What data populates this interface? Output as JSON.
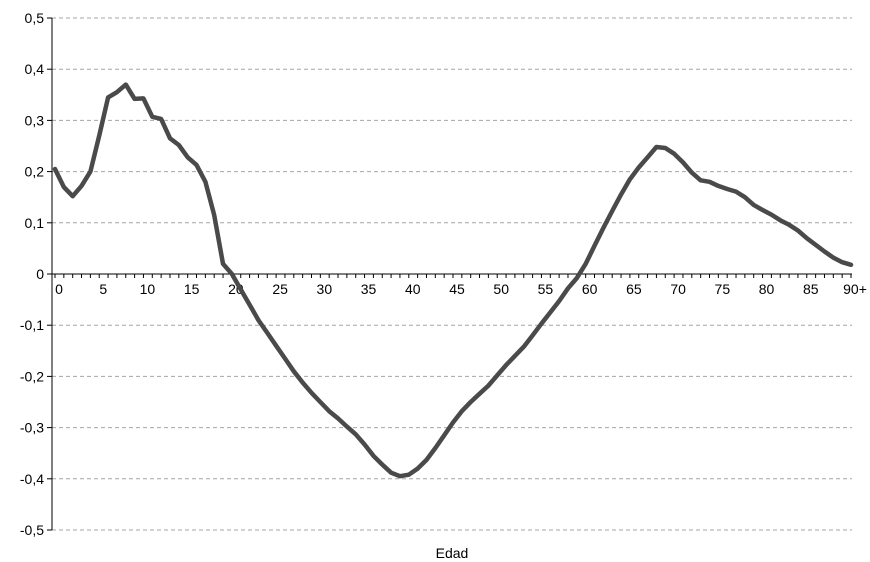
{
  "chart_data": {
    "type": "line",
    "title": "",
    "xlabel": "Edad",
    "ylabel": "",
    "xlim": [
      0,
      90
    ],
    "ylim": [
      -0.5,
      0.5
    ],
    "grid": "horizontal dashed",
    "legend": "none",
    "x_tick_labels": [
      "0",
      "5",
      "10",
      "15",
      "20",
      "25",
      "30",
      "35",
      "40",
      "45",
      "50",
      "55",
      "60",
      "65",
      "70",
      "75",
      "80",
      "85",
      "90+"
    ],
    "y_tick_labels": [
      "0,5",
      "0,4",
      "0,3",
      "0,2",
      "0,1",
      "0",
      "-0,1",
      "-0,2",
      "-0,3",
      "-0,4",
      "-0,5"
    ],
    "colors": {
      "line": "#4a4a4a",
      "grid": "#a6a6a6",
      "axis": "#000000"
    },
    "x": [
      0,
      1,
      2,
      3,
      4,
      5,
      6,
      7,
      8,
      9,
      10,
      11,
      12,
      13,
      14,
      15,
      16,
      17,
      18,
      19,
      20,
      21,
      22,
      23,
      24,
      25,
      26,
      27,
      28,
      29,
      30,
      31,
      32,
      33,
      34,
      35,
      36,
      37,
      38,
      39,
      40,
      41,
      42,
      43,
      44,
      45,
      46,
      47,
      48,
      49,
      50,
      51,
      52,
      53,
      54,
      55,
      56,
      57,
      58,
      59,
      60,
      61,
      62,
      63,
      64,
      65,
      66,
      67,
      68,
      69,
      70,
      71,
      72,
      73,
      74,
      75,
      76,
      77,
      78,
      79,
      80,
      81,
      82,
      83,
      84,
      85,
      86,
      87,
      88,
      89,
      90
    ],
    "values": [
      0.205,
      0.17,
      0.152,
      0.172,
      0.2,
      0.27,
      0.345,
      0.355,
      0.37,
      0.342,
      0.343,
      0.307,
      0.303,
      0.265,
      0.252,
      0.228,
      0.213,
      0.18,
      0.115,
      0.02,
      0.0,
      -0.03,
      -0.06,
      -0.09,
      -0.115,
      -0.14,
      -0.165,
      -0.19,
      -0.212,
      -0.232,
      -0.25,
      -0.268,
      -0.282,
      -0.298,
      -0.313,
      -0.333,
      -0.355,
      -0.372,
      -0.388,
      -0.395,
      -0.392,
      -0.38,
      -0.363,
      -0.34,
      -0.315,
      -0.29,
      -0.268,
      -0.25,
      -0.234,
      -0.218,
      -0.198,
      -0.178,
      -0.16,
      -0.142,
      -0.12,
      -0.097,
      -0.075,
      -0.053,
      -0.028,
      -0.008,
      0.02,
      0.055,
      0.09,
      0.123,
      0.155,
      0.185,
      0.208,
      0.228,
      0.248,
      0.246,
      0.235,
      0.218,
      0.198,
      0.183,
      0.18,
      0.172,
      0.166,
      0.161,
      0.15,
      0.135,
      0.125,
      0.116,
      0.105,
      0.096,
      0.085,
      0.07,
      0.057,
      0.044,
      0.032,
      0.023,
      0.018
    ]
  }
}
